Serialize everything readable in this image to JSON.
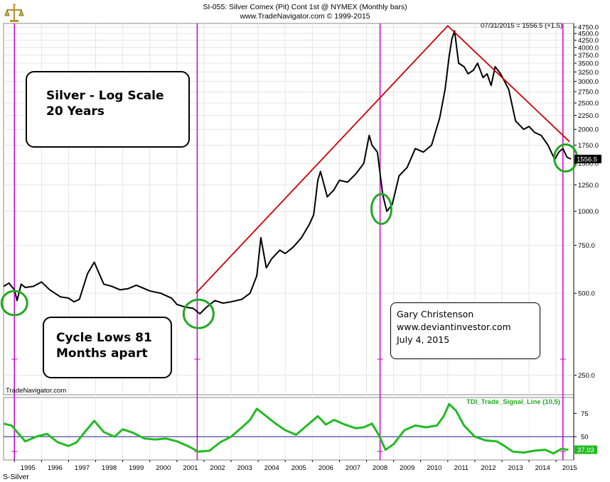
{
  "header": {
    "title": "SI-055:  Silver Comex (Pit) Cont 1st @ NYMEX  (Monthly bars)",
    "subtitle": "www.TradeNavigator.com © 1999-2015",
    "readout": "07/31/2015 = 1556.5 (+1.5)"
  },
  "watermark": "TradeNavigator.com",
  "footer_symbol": "S-Silver",
  "annotations": {
    "title_box_line1": "Silver - Log Scale",
    "title_box_line2": "20 Years",
    "cycle_box_line1": "Cycle Lows 81",
    "cycle_box_line2": "Months apart",
    "credit_line1": "Gary Christenson",
    "credit_line2": "www.deviantinvestor.com",
    "credit_line3": "July 4, 2015"
  },
  "colors": {
    "price_line": "#000000",
    "trend_line": "#cc0000",
    "cycle_line": "#cc00cc",
    "circle": "#22a822",
    "indicator": "#22bb22",
    "value_box": "#22bb22"
  },
  "chart_data": [
    {
      "type": "line",
      "title": "Silver Comex (Pit) Cont 1st @ NYMEX (Monthly bars)",
      "y_scale": "log",
      "ylim": [
        212,
        4900
      ],
      "xlim": [
        1994.6,
        2015.65
      ],
      "y_ticks": [
        250,
        500,
        750,
        1000,
        1250,
        1500,
        1750,
        2000,
        2250,
        2500,
        2750,
        3000,
        3250,
        3500,
        3750,
        4000,
        4250,
        4500,
        4750
      ],
      "y_tick_labels": [
        "250.0",
        "500.0",
        "750.0",
        "1000.0",
        "1250.0",
        "1500.0",
        "1750.0",
        "2000.0",
        "2250.0",
        "2500.0",
        "2750.0",
        "3000.0",
        "3250.0",
        "3500.0",
        "3750.0",
        "4000.0",
        "4250.0",
        "4500.0",
        "4750.0"
      ],
      "last_value_label": "1556.5",
      "grid": true,
      "series": [
        {
          "name": "Silver",
          "x": [
            1994.6,
            1994.8,
            1995.0,
            1995.1,
            1995.25,
            1995.4,
            1995.7,
            1996.0,
            1996.3,
            1996.7,
            1997.0,
            1997.2,
            1997.4,
            1997.7,
            1997.95,
            1998.1,
            1998.3,
            1998.6,
            1998.9,
            1999.2,
            1999.5,
            1999.8,
            2000.0,
            2000.4,
            2000.8,
            2001.0,
            2001.3,
            2001.6,
            2001.85,
            2002.1,
            2002.4,
            2002.7,
            2003.0,
            2003.4,
            2003.7,
            2003.95,
            2004.1,
            2004.3,
            2004.5,
            2004.8,
            2005.0,
            2005.3,
            2005.6,
            2005.9,
            2006.05,
            2006.2,
            2006.3,
            2006.55,
            2006.8,
            2007.0,
            2007.3,
            2007.6,
            2007.9,
            2008.1,
            2008.2,
            2008.4,
            2008.6,
            2008.75,
            2008.95,
            2009.2,
            2009.5,
            2009.8,
            2010.1,
            2010.4,
            2010.7,
            2010.9,
            2011.05,
            2011.15,
            2011.25,
            2011.4,
            2011.6,
            2011.75,
            2011.95,
            2012.1,
            2012.3,
            2012.45,
            2012.6,
            2012.75,
            2012.95,
            2013.1,
            2013.25,
            2013.5,
            2013.8,
            2014.0,
            2014.2,
            2014.45,
            2014.7,
            2014.95,
            2015.1,
            2015.25,
            2015.4,
            2015.55
          ],
          "y": [
            530,
            545,
            515,
            470,
            540,
            525,
            530,
            550,
            515,
            485,
            480,
            465,
            475,
            590,
            650,
            600,
            540,
            530,
            515,
            520,
            535,
            520,
            510,
            500,
            480,
            455,
            445,
            440,
            420,
            445,
            470,
            460,
            465,
            475,
            500,
            580,
            800,
            620,
            670,
            720,
            700,
            740,
            800,
            900,
            970,
            1300,
            1400,
            1130,
            1200,
            1300,
            1280,
            1370,
            1500,
            1900,
            1750,
            1650,
            1150,
            1000,
            1060,
            1350,
            1450,
            1700,
            1650,
            1750,
            2200,
            2800,
            3700,
            4300,
            4600,
            3500,
            3400,
            3200,
            3300,
            3500,
            3100,
            3200,
            2900,
            3400,
            3200,
            3000,
            2800,
            2150,
            2000,
            2050,
            1950,
            1900,
            1750,
            1550,
            1650,
            1700,
            1580,
            1556.5
          ]
        },
        {
          "name": "Trend",
          "x": [
            2001.7,
            2011.0,
            2015.5
          ],
          "y": [
            500,
            4800,
            1800
          ]
        }
      ],
      "cycle_lines_x": [
        1995.0,
        2001.75,
        2008.5,
        2015.25
      ],
      "circles": [
        {
          "x": 1995.0,
          "y": 460
        },
        {
          "x": 2001.8,
          "y": 420
        },
        {
          "x": 2008.55,
          "y": 1020
        },
        {
          "x": 2015.35,
          "y": 1570
        }
      ]
    },
    {
      "type": "line",
      "title": "TDI_Trade_Signal_Line (10,5)",
      "ylim": [
        25,
        92
      ],
      "y_ticks": [
        50,
        75
      ],
      "y_tick_labels": [
        "50",
        "75"
      ],
      "reference_line": 50,
      "last_value_label": "37.03",
      "x_tick_labels": [
        "1995",
        "1996",
        "1997",
        "1998",
        "1999",
        "2000",
        "2001",
        "2002",
        "2003",
        "2004",
        "2005",
        "2006",
        "2007",
        "2008",
        "2009",
        "2010",
        "2011",
        "2012",
        "2013",
        "2014",
        "2015"
      ],
      "series": [
        {
          "name": "TDI_Trade_Signal_Line",
          "x": [
            1994.6,
            1994.9,
            1995.1,
            1995.4,
            1995.8,
            1996.2,
            1996.6,
            1997.0,
            1997.3,
            1997.6,
            1997.95,
            1998.3,
            1998.7,
            1999.0,
            1999.4,
            1999.8,
            2000.2,
            2000.6,
            2001.0,
            2001.4,
            2001.8,
            2002.2,
            2002.6,
            2003.0,
            2003.4,
            2003.7,
            2003.95,
            2004.3,
            2004.6,
            2005.0,
            2005.4,
            2005.8,
            2006.2,
            2006.5,
            2006.8,
            2007.2,
            2007.6,
            2007.9,
            2008.2,
            2008.45,
            2008.7,
            2009.0,
            2009.4,
            2009.8,
            2010.2,
            2010.6,
            2010.85,
            2011.05,
            2011.3,
            2011.6,
            2012.0,
            2012.4,
            2012.8,
            2013.1,
            2013.4,
            2013.8,
            2014.2,
            2014.6,
            2014.9,
            2015.2,
            2015.45
          ],
          "y": [
            64,
            62,
            55,
            45,
            50,
            53,
            44,
            40,
            44,
            55,
            67,
            55,
            50,
            58,
            54,
            48,
            47,
            48,
            45,
            40,
            34,
            35,
            44,
            50,
            60,
            68,
            80,
            72,
            65,
            57,
            52,
            62,
            72,
            63,
            68,
            63,
            59,
            60,
            64,
            52,
            36,
            42,
            57,
            62,
            60,
            62,
            72,
            85,
            78,
            62,
            50,
            46,
            45,
            40,
            34,
            33,
            35,
            36,
            32,
            37,
            36
          ]
        }
      ]
    }
  ]
}
